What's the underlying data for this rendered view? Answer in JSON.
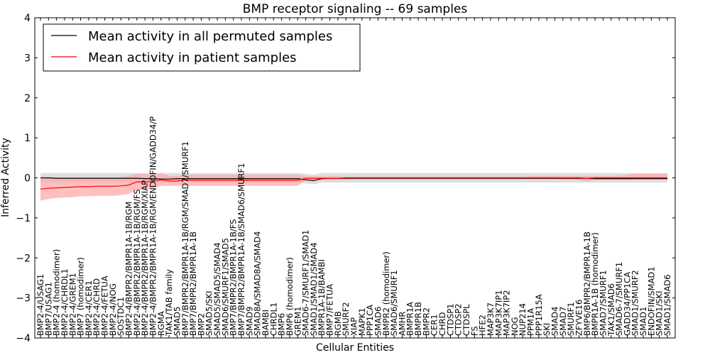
{
  "chart_data": {
    "type": "line",
    "title": "BMP receptor signaling -- 69 samples",
    "xlabel": "Cellular Entities",
    "ylabel": "Inferred Activity",
    "ylim": [
      -4,
      4
    ],
    "yticks": [
      -4,
      -3,
      -2,
      -1,
      0,
      1,
      2,
      3,
      4
    ],
    "ytick_labels": [
      "−4",
      "−3",
      "−2",
      "−1",
      "0",
      "1",
      "2",
      "3",
      "4"
    ],
    "legend_position": "top-left",
    "categories": [
      "BMP2-4/USAG1",
      "BMP7/USAG1",
      "BMP2-4 (homodimer)",
      "BMP2-4/CHRDL1",
      "BMP2-4/GREM1",
      "BMP7 (homodimer)",
      "BMP2-4/CER1",
      "BMP2-4/CHRD",
      "BMP2-4/FETUA",
      "BMP2-4/NOG",
      "SOSTDC1",
      "BMP2-4/BMPR2/BMPR1A-1B/RGM",
      "BMP2-4/BMPR2/BMPR1A-1B/RGM/FS",
      "BMP2-4/BMPR2/BMPR1A-1B/RGM/XIAP",
      "BMP2-4/BMPR2/BMPR1A-1B/RGM/ENDOFIN/GADD34/P",
      "RGMA",
      "TAK1/TAB family",
      "SMAD5",
      "BMP7/BMPR2/BMPR1A-1B/RGM/SMAD7/SMURF1",
      "BMP7/BMPR2/BMPR1A-1B",
      "BMP2",
      "SMAD5/SKI",
      "SMAD5/SMAD5/SMAD4",
      "SMAD6/SMURF1/SMAD5",
      "BMP7/BMPR2/BMPR1A-1B/FS",
      "BMP7/BMPR2/BMPR1A-1B/SMAD6/SMURF1",
      "SMAD9",
      "SMAD8A/SMAD8A/SMAD4",
      "BAMBI",
      "CHRDL1",
      "BMP6",
      "BMP6 (homodimer)",
      "GREM1",
      "SMAD6-7/SMURF1/SMAD1",
      "SMAD1/SMAD1/SMAD4",
      "BMPR1A-1B/BAMBI",
      "BMP7/FETUA",
      "RGMB",
      "SMURF2",
      "XIAP",
      "MAPK1",
      "PPP1CA",
      "SMAD6",
      "BMPR2 (homodimer)",
      "SMAD6/SMURF1",
      "AMHR",
      "BMPR1A",
      "BMPR1B",
      "BMPR2",
      "CER1",
      "CHRD",
      "CTDSP1",
      "CTDSP2",
      "CTDSPL",
      "FS",
      "HFE2",
      "MAP3K7",
      "MAP3K7IP1",
      "MAP3K7IP2",
      "NOG",
      "NUP214",
      "PPM1A",
      "PPP1R15A",
      "SKI",
      "SMAD4",
      "SMAD7",
      "SMURF1",
      "ZFYVE16",
      "BMP6/BMPR2/BMPR1A-1B",
      "BMPR1A-1B (homodimer)",
      "SMAD7/SMURF1",
      "TAK1/SMAD6",
      "SMAD6-7/SMURF1",
      "GADD34/PP1CA",
      "SMAD1/SMURF2",
      "SMAD1",
      "ENDOFIN/SMAD1",
      "SMAD1/SKI",
      "SMAD1/SMAD6"
    ],
    "series": [
      {
        "name": "Mean activity in all permuted samples",
        "color": "#000000",
        "band_color": "#cccccc",
        "values": [
          0,
          0,
          -0.01,
          -0.01,
          -0.01,
          -0.01,
          -0.01,
          -0.01,
          -0.01,
          -0.01,
          -0.01,
          -0.01,
          -0.01,
          -0.02,
          -0.02,
          -0.03,
          -0.03,
          -0.02,
          -0.02,
          -0.02,
          -0.02,
          -0.02,
          -0.02,
          -0.02,
          -0.02,
          -0.02,
          -0.02,
          -0.02,
          -0.02,
          -0.02,
          -0.02,
          -0.02,
          -0.02,
          -0.05,
          -0.07,
          -0.02,
          -0.01,
          -0.01,
          -0.01,
          -0.01,
          -0.01,
          -0.01,
          -0.01,
          -0.01,
          -0.01,
          -0.01,
          -0.01,
          -0.01,
          -0.01,
          -0.01,
          -0.01,
          -0.01,
          -0.01,
          -0.01,
          -0.01,
          -0.01,
          -0.01,
          -0.01,
          -0.01,
          -0.01,
          -0.01,
          -0.01,
          -0.01,
          -0.01,
          -0.01,
          -0.01,
          -0.01,
          -0.01,
          -0.01,
          -0.02,
          -0.02,
          -0.02,
          -0.02,
          -0.02,
          -0.02,
          -0.02,
          -0.02,
          -0.02,
          -0.02
        ],
        "lower": [
          -0.12,
          -0.12,
          -0.12,
          -0.12,
          -0.12,
          -0.12,
          -0.12,
          -0.12,
          -0.12,
          -0.12,
          -0.12,
          -0.12,
          -0.12,
          -0.12,
          -0.12,
          -0.12,
          -0.12,
          -0.12,
          -0.12,
          -0.12,
          -0.12,
          -0.12,
          -0.12,
          -0.12,
          -0.12,
          -0.12,
          -0.12,
          -0.12,
          -0.12,
          -0.12,
          -0.12,
          -0.12,
          -0.12,
          -0.14,
          -0.16,
          -0.12,
          -0.12,
          -0.12,
          -0.12,
          -0.12,
          -0.12,
          -0.12,
          -0.12,
          -0.12,
          -0.12,
          -0.12,
          -0.12,
          -0.12,
          -0.12,
          -0.12,
          -0.12,
          -0.12,
          -0.12,
          -0.12,
          -0.12,
          -0.12,
          -0.12,
          -0.12,
          -0.12,
          -0.12,
          -0.12,
          -0.12,
          -0.12,
          -0.12,
          -0.12,
          -0.12,
          -0.12,
          -0.12,
          -0.12,
          -0.12,
          -0.12,
          -0.12,
          -0.12,
          -0.12,
          -0.12,
          -0.12,
          -0.12,
          -0.12,
          -0.12
        ],
        "upper": [
          0.12,
          0.12,
          0.12,
          0.12,
          0.12,
          0.12,
          0.12,
          0.12,
          0.12,
          0.12,
          0.12,
          0.12,
          0.12,
          0.12,
          0.12,
          0.12,
          0.12,
          0.12,
          0.12,
          0.12,
          0.12,
          0.12,
          0.12,
          0.12,
          0.12,
          0.12,
          0.12,
          0.12,
          0.12,
          0.12,
          0.12,
          0.12,
          0.12,
          0.1,
          0.08,
          0.12,
          0.12,
          0.12,
          0.12,
          0.12,
          0.12,
          0.12,
          0.12,
          0.12,
          0.12,
          0.12,
          0.12,
          0.12,
          0.12,
          0.12,
          0.12,
          0.12,
          0.12,
          0.12,
          0.12,
          0.12,
          0.12,
          0.12,
          0.12,
          0.12,
          0.12,
          0.12,
          0.12,
          0.12,
          0.12,
          0.12,
          0.12,
          0.12,
          0.12,
          0.12,
          0.12,
          0.12,
          0.12,
          0.12,
          0.12,
          0.12,
          0.12,
          0.12,
          0.12
        ]
      },
      {
        "name": "Mean activity in patient samples",
        "color": "#ff0000",
        "band_color": "#ffaaaa",
        "values": [
          -0.28,
          -0.26,
          -0.25,
          -0.24,
          -0.23,
          -0.22,
          -0.22,
          -0.21,
          -0.21,
          -0.21,
          -0.2,
          -0.18,
          -0.1,
          -0.1,
          -0.09,
          -0.05,
          -0.08,
          -0.08,
          -0.05,
          -0.06,
          -0.06,
          -0.06,
          -0.06,
          -0.06,
          -0.06,
          -0.06,
          -0.06,
          -0.06,
          -0.06,
          -0.06,
          -0.06,
          -0.06,
          -0.06,
          -0.01,
          -0.01,
          -0.01,
          -0.01,
          -0.01,
          0,
          0,
          0,
          0,
          0,
          0,
          0,
          0,
          0,
          0,
          0,
          0,
          0,
          0,
          0,
          0,
          0,
          0,
          0,
          0,
          0,
          0,
          0,
          0,
          0,
          0,
          0,
          0,
          0,
          0,
          -0.01,
          0,
          0,
          0,
          0,
          0,
          0,
          0,
          0,
          0,
          0
        ],
        "lower": [
          -0.57,
          -0.53,
          -0.5,
          -0.49,
          -0.48,
          -0.46,
          -0.46,
          -0.45,
          -0.45,
          -0.45,
          -0.43,
          -0.4,
          -0.3,
          -0.3,
          -0.25,
          -0.2,
          -0.2,
          -0.2,
          -0.2,
          -0.2,
          -0.2,
          -0.2,
          -0.2,
          -0.2,
          -0.2,
          -0.2,
          -0.2,
          -0.2,
          -0.2,
          -0.2,
          -0.2,
          -0.2,
          -0.2,
          -0.06,
          -0.05,
          -0.05,
          -0.05,
          -0.05,
          -0.03,
          -0.03,
          -0.03,
          -0.03,
          -0.03,
          -0.03,
          -0.03,
          -0.03,
          -0.03,
          -0.03,
          -0.03,
          -0.03,
          -0.03,
          -0.03,
          -0.03,
          -0.03,
          -0.03,
          -0.03,
          -0.03,
          -0.03,
          -0.03,
          -0.03,
          -0.03,
          -0.03,
          -0.03,
          -0.03,
          -0.03,
          -0.05,
          -0.05,
          -0.05,
          -0.08,
          -0.05,
          -0.05,
          -0.05,
          -0.05,
          -0.05,
          -0.03,
          -0.03,
          -0.03,
          -0.03,
          -0.03
        ],
        "upper": [
          0,
          0.01,
          0.01,
          0.01,
          0.01,
          0.01,
          0.01,
          0.01,
          0.01,
          0.01,
          0.02,
          0.05,
          0.1,
          0.1,
          0.07,
          0.12,
          0.05,
          0.05,
          0.08,
          0.08,
          0.08,
          0.08,
          0.08,
          0.08,
          0.08,
          0.08,
          0.08,
          0.08,
          0.08,
          0.08,
          0.08,
          0.08,
          0.08,
          0.04,
          0.04,
          0.04,
          0.04,
          0.04,
          0.03,
          0.03,
          0.03,
          0.03,
          0.03,
          0.03,
          0.03,
          0.03,
          0.03,
          0.03,
          0.03,
          0.03,
          0.03,
          0.03,
          0.03,
          0.03,
          0.03,
          0.03,
          0.03,
          0.03,
          0.03,
          0.03,
          0.03,
          0.05,
          0.05,
          0.05,
          0.05,
          0.05,
          0.05,
          0.05,
          0.05,
          0.05,
          0.05,
          0.05,
          0.05,
          0.08,
          0.1,
          0.1,
          0.1,
          0.1,
          0.1
        ]
      }
    ]
  }
}
